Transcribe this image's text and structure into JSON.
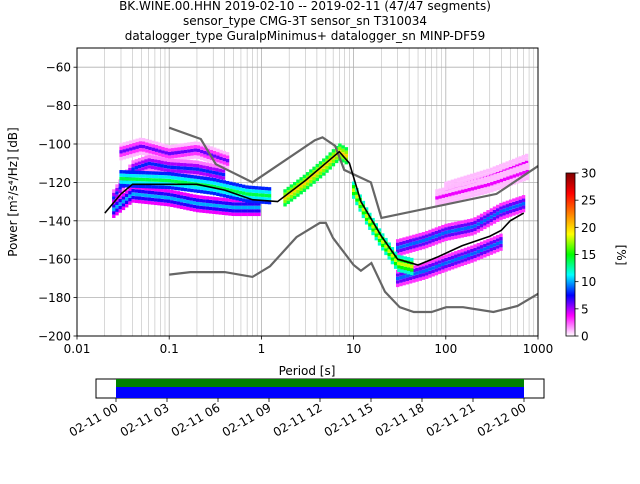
{
  "chart_data": [
    {
      "type": "heatmap",
      "title_lines": [
        "BK.WINE.00.HHN   2019-02-10 -- 2019-02-11  (47/47 segments)",
        "sensor_type CMG-3T sensor_sn T310034",
        "datalogger_type GuralpMinimus+ datalogger_sn MINP-DF59"
      ],
      "xlabel": "Period [s]",
      "ylabel": "Power [m²/s⁴/Hz] [dB]",
      "xscale": "log",
      "xlim": [
        0.01,
        1000
      ],
      "ylim": [
        -200,
        -50
      ],
      "xticks": [
        {
          "value": 0.01,
          "label": "0.01"
        },
        {
          "value": 0.1,
          "label": "0.1"
        },
        {
          "value": 1,
          "label": "1"
        },
        {
          "value": 10,
          "label": "10"
        },
        {
          "value": 100,
          "label": "100"
        },
        {
          "value": 1000,
          "label": "1000"
        }
      ],
      "yticks": [
        {
          "value": -60,
          "label": "−60"
        },
        {
          "value": -80,
          "label": "−80"
        },
        {
          "value": -100,
          "label": "−100"
        },
        {
          "value": -120,
          "label": "−120"
        },
        {
          "value": -140,
          "label": "−140"
        },
        {
          "value": -160,
          "label": "−160"
        },
        {
          "value": -180,
          "label": "−180"
        },
        {
          "value": -200,
          "label": "−200"
        }
      ],
      "grid": true,
      "colorbar": {
        "label": "[%]",
        "range": [
          0,
          30
        ],
        "ticks": [
          {
            "value": 0,
            "label": "0"
          },
          {
            "value": 5,
            "label": "5"
          },
          {
            "value": 10,
            "label": "10"
          },
          {
            "value": 15,
            "label": "15"
          },
          {
            "value": 20,
            "label": "20"
          },
          {
            "value": 25,
            "label": "25"
          },
          {
            "value": 30,
            "label": "30"
          }
        ],
        "colors": [
          "#ffffff",
          "#ff00ff",
          "#0000ff",
          "#00ffff",
          "#00ff00",
          "#ffff00",
          "#ff8000",
          "#ff0000",
          "#800000"
        ]
      },
      "noise_models": {
        "color": "#666666",
        "high": [
          [
            0.1,
            -91.5
          ],
          [
            0.22,
            -97.4
          ],
          [
            0.32,
            -110.5
          ],
          [
            0.8,
            -120
          ],
          [
            3.8,
            -98
          ],
          [
            4.6,
            -96.5
          ],
          [
            6.3,
            -101
          ],
          [
            7.9,
            -113.5
          ],
          [
            15.4,
            -120
          ],
          [
            20,
            -138.5
          ],
          [
            354.8,
            -126
          ],
          [
            1000,
            -111.5
          ]
        ],
        "low": [
          [
            0.1,
            -168
          ],
          [
            0.17,
            -166.7
          ],
          [
            0.4,
            -166.7
          ],
          [
            0.8,
            -169.2
          ],
          [
            1.24,
            -163.7
          ],
          [
            2.4,
            -148.5
          ],
          [
            4.3,
            -141.1
          ],
          [
            5,
            -141.1
          ],
          [
            6,
            -149
          ],
          [
            10,
            -163
          ],
          [
            12,
            -166
          ],
          [
            15.6,
            -162
          ],
          [
            21.9,
            -177
          ],
          [
            31.6,
            -185
          ],
          [
            45,
            -187.5
          ],
          [
            70,
            -187.5
          ],
          [
            101,
            -185
          ],
          [
            154,
            -185
          ],
          [
            328,
            -187.5
          ],
          [
            600,
            -184.4
          ],
          [
            1000,
            -178
          ]
        ]
      },
      "mode_curve": {
        "color": "#000000",
        "points": [
          [
            0.02,
            -136
          ],
          [
            0.03,
            -126
          ],
          [
            0.04,
            -121
          ],
          [
            0.1,
            -121
          ],
          [
            0.2,
            -121
          ],
          [
            0.4,
            -124
          ],
          [
            0.8,
            -129
          ],
          [
            1.5,
            -130
          ],
          [
            3,
            -119
          ],
          [
            5,
            -110
          ],
          [
            7,
            -104
          ],
          [
            9,
            -110
          ],
          [
            12,
            -130
          ],
          [
            20,
            -148
          ],
          [
            30,
            -160
          ],
          [
            50,
            -163
          ],
          [
            80,
            -159
          ],
          [
            150,
            -153
          ],
          [
            300,
            -148
          ],
          [
            400,
            -145
          ],
          [
            500,
            -140
          ],
          [
            700,
            -136
          ]
        ]
      },
      "density_bands": [
        {
          "pct": 6,
          "points": [
            [
              0.03,
              -104
            ],
            [
              0.05,
              -101
            ],
            [
              0.1,
              -105
            ],
            [
              0.2,
              -103
            ],
            [
              0.3,
              -106
            ],
            [
              0.45,
              -109
            ]
          ]
        },
        {
          "pct": 4,
          "points": [
            [
              100,
              -124
            ],
            [
              300,
              -117
            ],
            [
              800,
              -109
            ]
          ]
        },
        {
          "pct": 4,
          "points": [
            [
              80,
              -128
            ],
            [
              300,
              -121
            ],
            [
              800,
              -114
            ]
          ]
        },
        {
          "pct": 8,
          "points": [
            [
              0.025,
              -128
            ],
            [
              0.04,
              -113
            ],
            [
              0.06,
              -110
            ],
            [
              0.1,
              -112
            ],
            [
              0.2,
              -113
            ],
            [
              0.4,
              -116
            ]
          ]
        },
        {
          "pct": 10,
          "points": [
            [
              0.025,
              -134
            ],
            [
              0.04,
              -126
            ],
            [
              0.1,
              -128
            ],
            [
              0.2,
              -131
            ],
            [
              0.5,
              -133
            ],
            [
              1,
              -133
            ]
          ]
        },
        {
          "pct": 14,
          "points": [
            [
              0.03,
              -118
            ],
            [
              0.1,
              -119
            ],
            [
              0.3,
              -122
            ],
            [
              0.7,
              -126
            ],
            [
              1.3,
              -127
            ]
          ]
        },
        {
          "pct": 9,
          "points": [
            [
              30,
              -154
            ],
            [
              60,
              -150
            ],
            [
              100,
              -146
            ],
            [
              200,
              -143
            ],
            [
              400,
              -135
            ],
            [
              700,
              -131
            ]
          ]
        },
        {
          "pct": 9,
          "points": [
            [
              30,
              -170
            ],
            [
              60,
              -166
            ],
            [
              100,
              -162
            ],
            [
              200,
              -157
            ],
            [
              400,
              -151
            ]
          ]
        },
        {
          "pct": 20,
          "points": [
            [
              1.8,
              -128
            ],
            [
              3,
              -120
            ],
            [
              5,
              -111
            ],
            [
              7,
              -104
            ],
            [
              9,
              -107
            ]
          ]
        },
        {
          "pct": 18,
          "points": [
            [
              10,
              -124
            ],
            [
              14,
              -138
            ],
            [
              20,
              -150
            ],
            [
              30,
              -162
            ],
            [
              45,
              -164
            ]
          ]
        }
      ]
    },
    {
      "type": "timeline",
      "tick_labels": [
        "02-11 00",
        "02-11 03",
        "02-11 06",
        "02-11 09",
        "02-11 12",
        "02-11 15",
        "02-11 18",
        "02-11 21",
        "02-12 00"
      ],
      "coverage_colors": {
        "top": "#008000",
        "bottom": "#0000ff"
      }
    }
  ]
}
